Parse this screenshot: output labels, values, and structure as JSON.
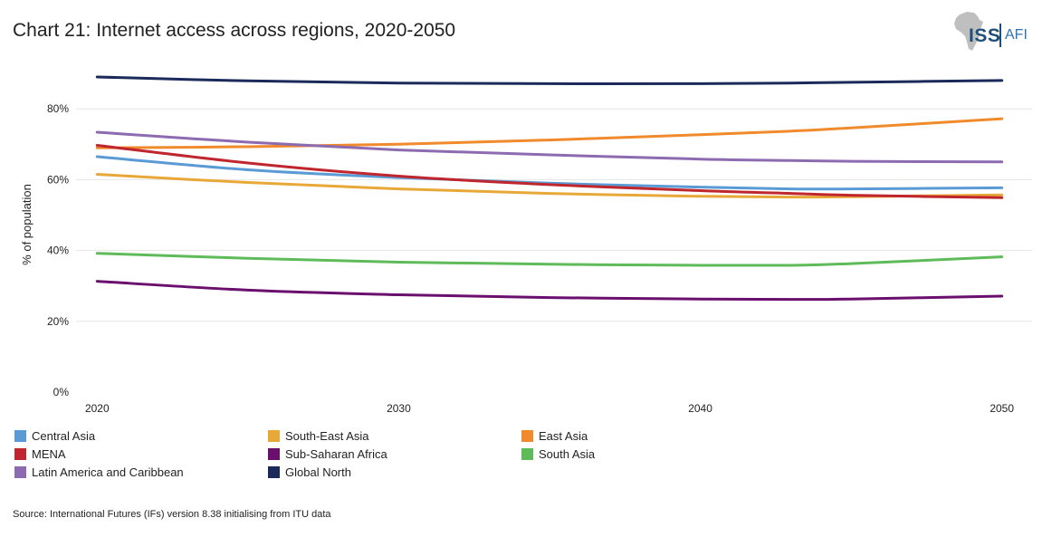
{
  "title": "Chart 21: Internet access across regions, 2020-2050",
  "logo": {
    "iss": "ISS",
    "afi": "AFI",
    "icon": "africa-map-icon"
  },
  "source": "Source: International Futures (IFs) version 8.38 initialising from ITU data",
  "chart_data": {
    "type": "line",
    "title": "Chart 21: Internet access across regions, 2020-2050",
    "xlabel": "",
    "ylabel": "% of population",
    "x": [
      2020,
      2025,
      2030,
      2035,
      2040,
      2043,
      2045,
      2050
    ],
    "xticks": [
      2020,
      2030,
      2040,
      2050
    ],
    "xtick_labels": [
      "2020",
      "2030",
      "2040",
      "2050"
    ],
    "yticks": [
      0,
      20,
      40,
      60,
      80
    ],
    "ytick_labels": [
      "0%",
      "20%",
      "40%",
      "60%",
      "80%"
    ],
    "xlim": [
      2019.3,
      2051
    ],
    "ylim": [
      0,
      100
    ],
    "grid": true,
    "legend_position": "bottom",
    "series": [
      {
        "name": "Central Asia",
        "color": "#5b9bd5",
        "values": [
          66.5,
          62.8,
          60.6,
          59,
          57.9,
          57.4,
          57.4,
          57.7
        ]
      },
      {
        "name": "South-East Asia",
        "color": "#e8a838",
        "values": [
          61.5,
          59.2,
          57.4,
          56.1,
          55.3,
          55.1,
          55.2,
          55.7
        ]
      },
      {
        "name": "East Asia",
        "color": "#f08a2c",
        "values": [
          69,
          69.3,
          70,
          71.2,
          72.7,
          73.7,
          74.6,
          77.2
        ]
      },
      {
        "name": "MENA",
        "color": "#c0262d",
        "values": [
          69.7,
          64.7,
          61,
          58.6,
          56.9,
          56.1,
          55.6,
          54.9
        ]
      },
      {
        "name": "Sub-Saharan Africa",
        "color": "#6a0f6e",
        "values": [
          31.3,
          28.8,
          27.5,
          26.7,
          26.3,
          26.2,
          26.3,
          27.1
        ]
      },
      {
        "name": "South Asia",
        "color": "#5fbb5a",
        "values": [
          39.2,
          37.8,
          36.7,
          36.1,
          35.8,
          35.8,
          36.3,
          38.2
        ]
      },
      {
        "name": "Latin America and Caribbean",
        "color": "#8c6bb1",
        "values": [
          73.4,
          70.6,
          68.4,
          67,
          65.8,
          65.4,
          65.2,
          65
        ]
      },
      {
        "name": "Global North",
        "color": "#1b2a5a",
        "values": [
          89,
          87.9,
          87.3,
          87.1,
          87.1,
          87.3,
          87.5,
          88
        ]
      }
    ]
  }
}
